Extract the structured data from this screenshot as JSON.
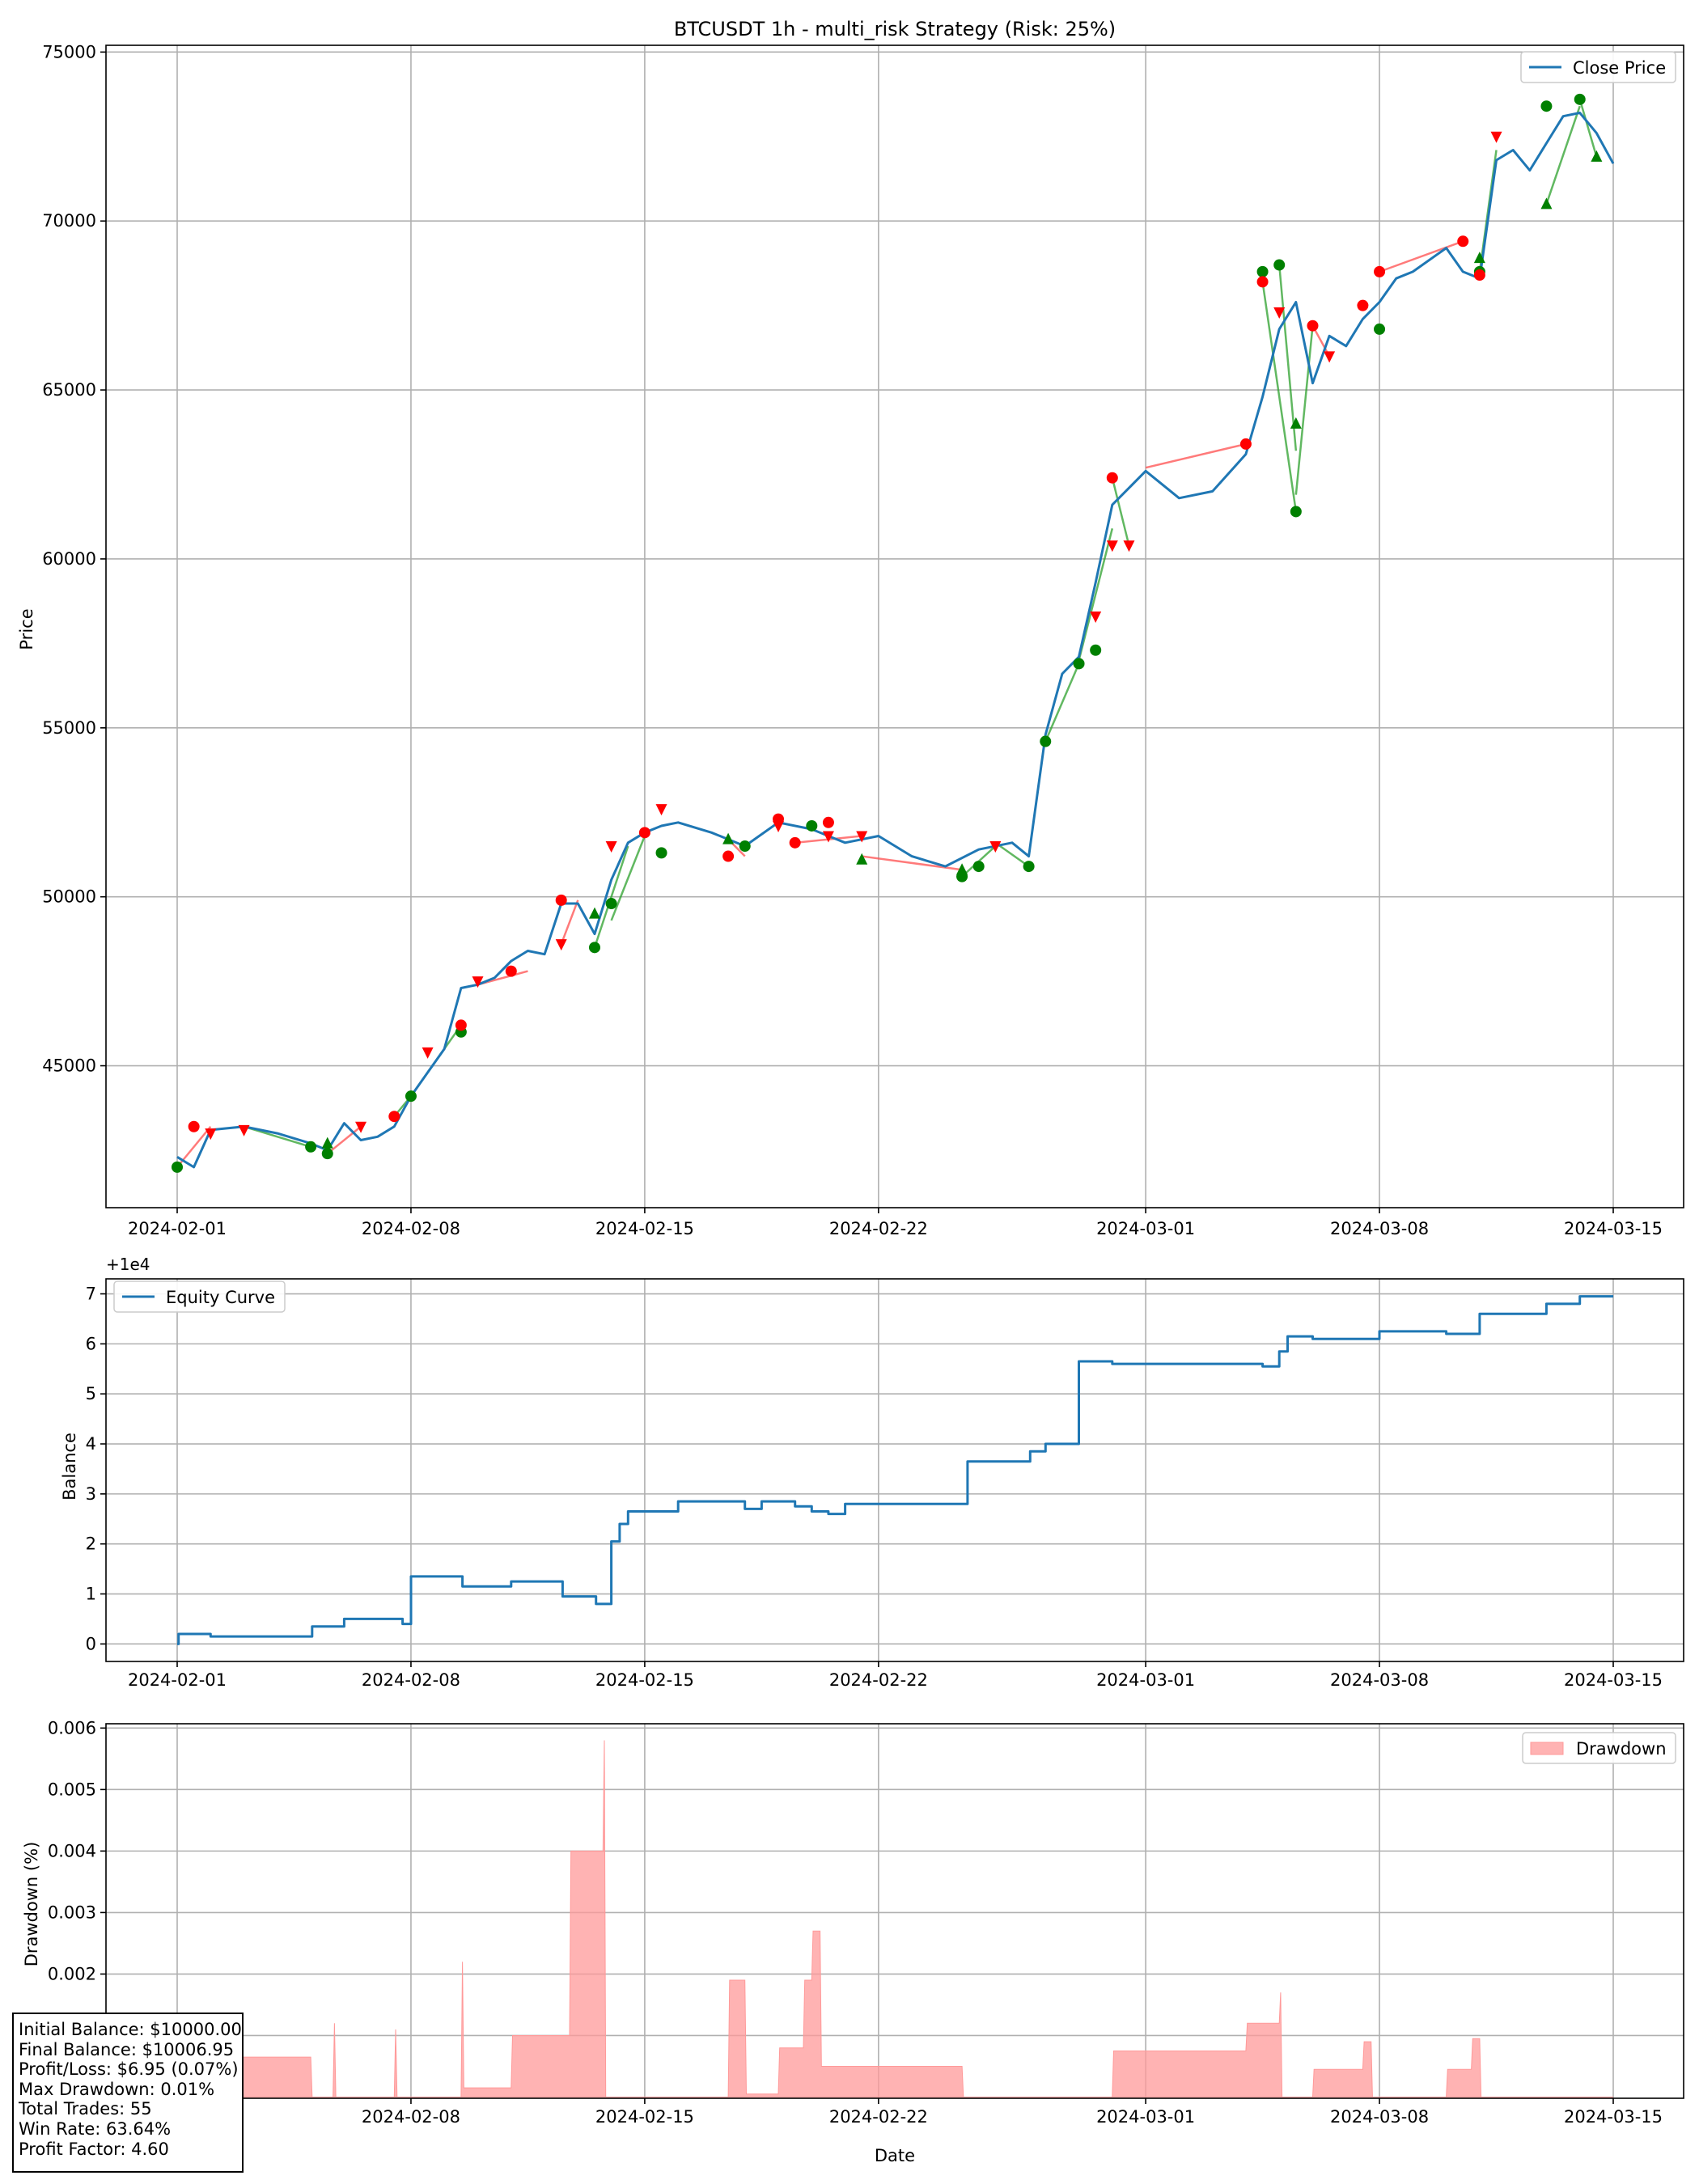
{
  "colors": {
    "price": "#1f77b4",
    "equity": "#1f77b4",
    "drawdown_fill": "#ff9999",
    "trade_win": "#2ca02c",
    "trade_loss": "#ff4d4d",
    "marker_buy": "#008000",
    "marker_sell": "#ff0000",
    "grid": "#b0b0b0"
  },
  "stats_box": {
    "lines": [
      "Initial Balance: $10000.00",
      "Final Balance: $10006.95",
      "Profit/Loss: $6.95 (0.07%)",
      "Max Drawdown: 0.01%",
      "Total Trades: 55",
      "Win Rate: 63.64%",
      "Profit Factor: 4.60"
    ]
  },
  "chart_data": [
    {
      "type": "line",
      "title": "BTCUSDT 1h - multi_risk Strategy (Risk: 25%)",
      "xlabel": "",
      "ylabel": "Price",
      "x_ticks": [
        "2024-02-01",
        "2024-02-08",
        "2024-02-15",
        "2024-02-22",
        "2024-03-01",
        "2024-03-08",
        "2024-03-15"
      ],
      "y_ticks": [
        "45000",
        "50000",
        "55000",
        "60000",
        "65000",
        "70000",
        "75000"
      ],
      "ylim": [
        40800,
        75200
      ],
      "grid": true,
      "legend": "top-right",
      "series": [
        {
          "name": "Close Price",
          "x": [
            "2024-02-01",
            "2024-02-01T12",
            "2024-02-02",
            "2024-02-03",
            "2024-02-04",
            "2024-02-05",
            "2024-02-05T12",
            "2024-02-06",
            "2024-02-06T12",
            "2024-02-07",
            "2024-02-07T12",
            "2024-02-08",
            "2024-02-08T12",
            "2024-02-09",
            "2024-02-09T12",
            "2024-02-10",
            "2024-02-10T12",
            "2024-02-11",
            "2024-02-11T12",
            "2024-02-12",
            "2024-02-12T12",
            "2024-02-13",
            "2024-02-13T12",
            "2024-02-14",
            "2024-02-14T12",
            "2024-02-15",
            "2024-02-15T12",
            "2024-02-16",
            "2024-02-17",
            "2024-02-18",
            "2024-02-19",
            "2024-02-20",
            "2024-02-20T12",
            "2024-02-21",
            "2024-02-22",
            "2024-02-23",
            "2024-02-24",
            "2024-02-25",
            "2024-02-26",
            "2024-02-26T12",
            "2024-02-27",
            "2024-02-27T12",
            "2024-02-28",
            "2024-02-28T12",
            "2024-02-29",
            "2024-02-29T12",
            "2024-03-01",
            "2024-03-02",
            "2024-03-03",
            "2024-03-04",
            "2024-03-04T12",
            "2024-03-05",
            "2024-03-05T12",
            "2024-03-06",
            "2024-03-06T12",
            "2024-03-07",
            "2024-03-07T12",
            "2024-03-08",
            "2024-03-08T12",
            "2024-03-09",
            "2024-03-10",
            "2024-03-10T12",
            "2024-03-11",
            "2024-03-11T12",
            "2024-03-12",
            "2024-03-12T12",
            "2024-03-13",
            "2024-03-13T12",
            "2024-03-14",
            "2024-03-14T12",
            "2024-03-15"
          ],
          "y": [
            42300,
            42000,
            43100,
            43200,
            43000,
            42700,
            42500,
            43300,
            42800,
            42900,
            43200,
            44100,
            44800,
            45500,
            47300,
            47400,
            47600,
            48100,
            48400,
            48300,
            49800,
            49800,
            48900,
            50500,
            51600,
            51900,
            52100,
            52200,
            51900,
            51500,
            52200,
            52000,
            51800,
            51600,
            51800,
            51200,
            50900,
            51400,
            51600,
            51200,
            54800,
            56600,
            57100,
            59300,
            61600,
            62100,
            62600,
            61800,
            62000,
            63100,
            64800,
            66800,
            67600,
            65200,
            66600,
            66300,
            67100,
            67600,
            68300,
            68500,
            69200,
            68500,
            68300,
            71800,
            72100,
            71500,
            72300,
            73100,
            73200,
            72600,
            71700
          ]
        }
      ],
      "trade_lines": [
        {
          "x": [
            "2024-02-01",
            "2024-02-02"
          ],
          "y": [
            42000,
            43200
          ],
          "result": "loss"
        },
        {
          "x": [
            "2024-02-03",
            "2024-02-05"
          ],
          "y": [
            43200,
            42600
          ],
          "result": "win"
        },
        {
          "x": [
            "2024-02-05T12",
            "2024-02-06T12"
          ],
          "y": [
            42400,
            43200
          ],
          "result": "loss"
        },
        {
          "x": [
            "2024-02-07T12",
            "2024-02-08"
          ],
          "y": [
            43500,
            44100
          ],
          "result": "win"
        },
        {
          "x": [
            "2024-02-08T12",
            "2024-02-09T12"
          ],
          "y": [
            44800,
            46200
          ],
          "result": "win"
        },
        {
          "x": [
            "2024-02-10",
            "2024-02-11T12"
          ],
          "y": [
            47400,
            47800
          ],
          "result": "loss"
        },
        {
          "x": [
            "2024-02-12T12",
            "2024-02-13"
          ],
          "y": [
            48600,
            49900
          ],
          "result": "loss"
        },
        {
          "x": [
            "2024-02-13T12",
            "2024-02-14T12"
          ],
          "y": [
            48500,
            51500
          ],
          "result": "win"
        },
        {
          "x": [
            "2024-02-14",
            "2024-02-15"
          ],
          "y": [
            49300,
            51800
          ],
          "result": "win"
        },
        {
          "x": [
            "2024-02-17T12",
            "2024-02-18"
          ],
          "y": [
            51700,
            51200
          ],
          "result": "loss"
        },
        {
          "x": [
            "2024-02-19T12",
            "2024-02-21T12"
          ],
          "y": [
            51600,
            51800
          ],
          "result": "loss"
        },
        {
          "x": [
            "2024-02-21T12",
            "2024-02-24T12"
          ],
          "y": [
            51200,
            50800
          ],
          "result": "loss"
        },
        {
          "x": [
            "2024-02-24T12",
            "2024-02-25T12"
          ],
          "y": [
            50600,
            51500
          ],
          "result": "win"
        },
        {
          "x": [
            "2024-02-25T12",
            "2024-02-26T12"
          ],
          "y": [
            51600,
            50900
          ],
          "result": "win"
        },
        {
          "x": [
            "2024-02-27",
            "2024-02-28"
          ],
          "y": [
            54600,
            56900
          ],
          "result": "win"
        },
        {
          "x": [
            "2024-02-28",
            "2024-02-29"
          ],
          "y": [
            57000,
            60900
          ],
          "result": "win"
        },
        {
          "x": [
            "2024-02-29",
            "2024-02-29T12"
          ],
          "y": [
            62400,
            60400
          ],
          "result": "win"
        },
        {
          "x": [
            "2024-03-01",
            "2024-03-04"
          ],
          "y": [
            62700,
            63400
          ],
          "result": "loss"
        },
        {
          "x": [
            "2024-03-04T12",
            "2024-03-05T12"
          ],
          "y": [
            68200,
            61400
          ],
          "result": "win"
        },
        {
          "x": [
            "2024-03-05",
            "2024-03-05T12"
          ],
          "y": [
            68700,
            63200
          ],
          "result": "win"
        },
        {
          "x": [
            "2024-03-05T12",
            "2024-03-06"
          ],
          "y": [
            61900,
            66900
          ],
          "result": "win"
        },
        {
          "x": [
            "2024-03-06",
            "2024-03-06T12"
          ],
          "y": [
            66900,
            66000
          ],
          "result": "loss"
        },
        {
          "x": [
            "2024-03-08",
            "2024-03-10T12"
          ],
          "y": [
            68500,
            69400
          ],
          "result": "loss"
        },
        {
          "x": [
            "2024-03-11",
            "2024-03-11T12"
          ],
          "y": [
            68500,
            72100
          ],
          "result": "win"
        },
        {
          "x": [
            "2024-03-13",
            "2024-03-14"
          ],
          "y": [
            70500,
            73400
          ],
          "result": "win"
        },
        {
          "x": [
            "2024-03-14",
            "2024-03-14T12"
          ],
          "y": [
            73600,
            71900
          ],
          "result": "win"
        }
      ],
      "markers": {
        "buy_triangle_up": {
          "x": [
            "2024-02-05T12",
            "2024-02-13T12",
            "2024-02-17T12",
            "2024-02-21T12",
            "2024-02-24T12",
            "2024-03-05T12",
            "2024-03-11",
            "2024-03-13",
            "2024-03-14T12"
          ],
          "y": [
            42700,
            49500,
            51700,
            51100,
            50800,
            64000,
            68900,
            70500,
            71900
          ]
        },
        "sell_triangle_down": {
          "x": [
            "2024-02-02",
            "2024-02-03",
            "2024-02-06T12",
            "2024-02-08T12",
            "2024-02-10",
            "2024-02-12T12",
            "2024-02-14",
            "2024-02-15T12",
            "2024-02-19",
            "2024-02-20T12",
            "2024-02-21T12",
            "2024-02-25T12",
            "2024-02-28T12",
            "2024-02-29",
            "2024-02-29T12",
            "2024-03-05",
            "2024-03-06T12",
            "2024-03-11T12"
          ],
          "y": [
            43000,
            43100,
            43200,
            45400,
            47500,
            48600,
            51500,
            52600,
            52100,
            51800,
            51800,
            51500,
            58300,
            60400,
            60400,
            67300,
            66000,
            72500
          ]
        },
        "win_circle": {
          "x": [
            "2024-02-01",
            "2024-02-05",
            "2024-02-05T12",
            "2024-02-08",
            "2024-02-09T12",
            "2024-02-13T12",
            "2024-02-14",
            "2024-02-15T12",
            "2024-02-18",
            "2024-02-20",
            "2024-02-24T12",
            "2024-02-25",
            "2024-02-26T12",
            "2024-02-27",
            "2024-02-28",
            "2024-02-28T12",
            "2024-03-04T12",
            "2024-03-05",
            "2024-03-05T12",
            "2024-03-08",
            "2024-03-11",
            "2024-03-13",
            "2024-03-14"
          ],
          "y": [
            42000,
            42600,
            42400,
            44100,
            46000,
            48500,
            49800,
            51300,
            51500,
            52100,
            50600,
            50900,
            50900,
            54600,
            56900,
            57300,
            68500,
            68700,
            61400,
            66800,
            68500,
            73400,
            73600
          ]
        },
        "loss_circle": {
          "x": [
            "2024-02-01T12",
            "2024-02-07T12",
            "2024-02-09T12",
            "2024-02-11",
            "2024-02-12T12",
            "2024-02-15",
            "2024-02-17T12",
            "2024-02-19",
            "2024-02-19T12",
            "2024-02-20T12",
            "2024-02-29",
            "2024-03-04",
            "2024-03-04T12",
            "2024-03-06",
            "2024-03-07T12",
            "2024-03-08",
            "2024-03-10T12",
            "2024-03-11"
          ],
          "y": [
            43200,
            43500,
            46200,
            47800,
            49900,
            51900,
            51200,
            52300,
            51600,
            52200,
            62400,
            63400,
            68200,
            66900,
            67500,
            68500,
            69400,
            68400
          ]
        }
      }
    },
    {
      "type": "line",
      "title": "",
      "xlabel": "",
      "ylabel": "Balance",
      "offset_label": "+1e4",
      "x_ticks": [
        "2024-02-01",
        "2024-02-08",
        "2024-02-15",
        "2024-02-22",
        "2024-03-01",
        "2024-03-08",
        "2024-03-15"
      ],
      "y_ticks": [
        "0",
        "1",
        "2",
        "3",
        "4",
        "5",
        "6",
        "7"
      ],
      "ylim": [
        -0.35,
        7.3
      ],
      "grid": true,
      "legend": "top-left",
      "series": [
        {
          "name": "Equity Curve",
          "x": [
            "2024-02-01",
            "2024-02-01T01",
            "2024-02-01T12",
            "2024-02-02",
            "2024-02-05",
            "2024-02-05T01",
            "2024-02-05T12",
            "2024-02-06",
            "2024-02-07T12",
            "2024-02-07T18",
            "2024-02-08",
            "2024-02-09",
            "2024-02-09T12",
            "2024-02-09T13",
            "2024-02-11",
            "2024-02-11T01",
            "2024-02-12T12",
            "2024-02-12T13",
            "2024-02-13T12",
            "2024-02-13T13",
            "2024-02-14",
            "2024-02-14T06",
            "2024-02-14T12",
            "2024-02-15",
            "2024-02-16",
            "2024-02-17",
            "2024-02-18",
            "2024-02-18T12",
            "2024-02-19",
            "2024-02-19T12",
            "2024-02-20",
            "2024-02-20T12",
            "2024-02-21",
            "2024-02-24T12",
            "2024-02-24T16",
            "2024-02-26T12",
            "2024-02-26T13",
            "2024-02-27",
            "2024-02-27T12",
            "2024-02-28",
            "2024-02-28T12",
            "2024-02-29",
            "2024-03-04",
            "2024-03-04T12",
            "2024-03-05",
            "2024-03-05T06",
            "2024-03-06",
            "2024-03-07",
            "2024-03-08",
            "2024-03-09",
            "2024-03-10",
            "2024-03-11",
            "2024-03-12",
            "2024-03-13",
            "2024-03-14",
            "2024-03-15"
          ],
          "y": [
            0,
            0.2,
            0.2,
            0.15,
            0.15,
            0.35,
            0.35,
            0.5,
            0.5,
            0.4,
            1.35,
            1.35,
            1.35,
            1.15,
            1.25,
            1.25,
            1.25,
            0.95,
            0.95,
            0.8,
            2.05,
            2.4,
            2.65,
            2.65,
            2.85,
            2.85,
            2.7,
            2.85,
            2.85,
            2.75,
            2.65,
            2.6,
            2.8,
            2.8,
            3.65,
            3.65,
            3.85,
            4.0,
            4.0,
            5.65,
            5.65,
            5.6,
            5.6,
            5.55,
            5.85,
            6.15,
            6.1,
            6.1,
            6.25,
            6.25,
            6.2,
            6.6,
            6.6,
            6.8,
            6.95,
            6.95
          ]
        }
      ]
    },
    {
      "type": "area",
      "title": "",
      "xlabel": "Date",
      "ylabel": "Drawdown (%)",
      "x_ticks": [
        "2024-02-01",
        "2024-02-08",
        "2024-02-15",
        "2024-02-22",
        "2024-03-01",
        "2024-03-08",
        "2024-03-15"
      ],
      "y_ticks": [
        "0.001",
        "0.002",
        "0.003",
        "0.004",
        "0.005",
        "0.006"
      ],
      "ylim": [
        -2e-05,
        0.00607
      ],
      "grid": true,
      "legend": "top-right",
      "series": [
        {
          "name": "Drawdown",
          "x": [
            "2024-02-01",
            "2024-02-01T12",
            "2024-02-01T13",
            "2024-02-05",
            "2024-02-05T01",
            "2024-02-05T16",
            "2024-02-05T17",
            "2024-02-05T18",
            "2024-02-07T12",
            "2024-02-07T13",
            "2024-02-07T14",
            "2024-02-09T12",
            "2024-02-09T13",
            "2024-02-09T14",
            "2024-02-11",
            "2024-02-11T01",
            "2024-02-12T18",
            "2024-02-12T19",
            "2024-02-13T18",
            "2024-02-13T19",
            "2024-02-13T20",
            "2024-02-17T12",
            "2024-02-17T13",
            "2024-02-18",
            "2024-02-18T01",
            "2024-02-19",
            "2024-02-19T01",
            "2024-02-19T18",
            "2024-02-19T19",
            "2024-02-20",
            "2024-02-20T01",
            "2024-02-20T06",
            "2024-02-20T07",
            "2024-02-24T12",
            "2024-02-24T13",
            "2024-02-29",
            "2024-02-29T01",
            "2024-03-04",
            "2024-03-04T01",
            "2024-03-05",
            "2024-03-05T01",
            "2024-03-05T02",
            "2024-03-06",
            "2024-03-06T01",
            "2024-03-07T12",
            "2024-03-07T13",
            "2024-03-07T18",
            "2024-03-07T19",
            "2024-03-10",
            "2024-03-10T01",
            "2024-03-10T18",
            "2024-03-10T19",
            "2024-03-11",
            "2024-03-11T01",
            "2024-03-15"
          ],
          "y": [
            0,
            0,
            0.00065,
            0.00065,
            0,
            0,
            0.0012,
            0,
            0,
            0.0011,
            0,
            0,
            0.0022,
            0.00015,
            0.00015,
            0.001,
            0.001,
            0.004,
            0.004,
            0.0058,
            0,
            0,
            0.0019,
            0.0019,
            5e-05,
            5e-05,
            0.0008,
            0.0008,
            0.0019,
            0.0019,
            0.0027,
            0.0027,
            0.0005,
            0.0005,
            0,
            0,
            0.00075,
            0.00075,
            0.0012,
            0.0012,
            0.0017,
            0,
            0,
            0.00045,
            0.00045,
            0.0009,
            0.0009,
            0,
            0,
            0.00045,
            0.00045,
            0.00095,
            0.00095,
            0,
            0
          ]
        }
      ]
    }
  ]
}
